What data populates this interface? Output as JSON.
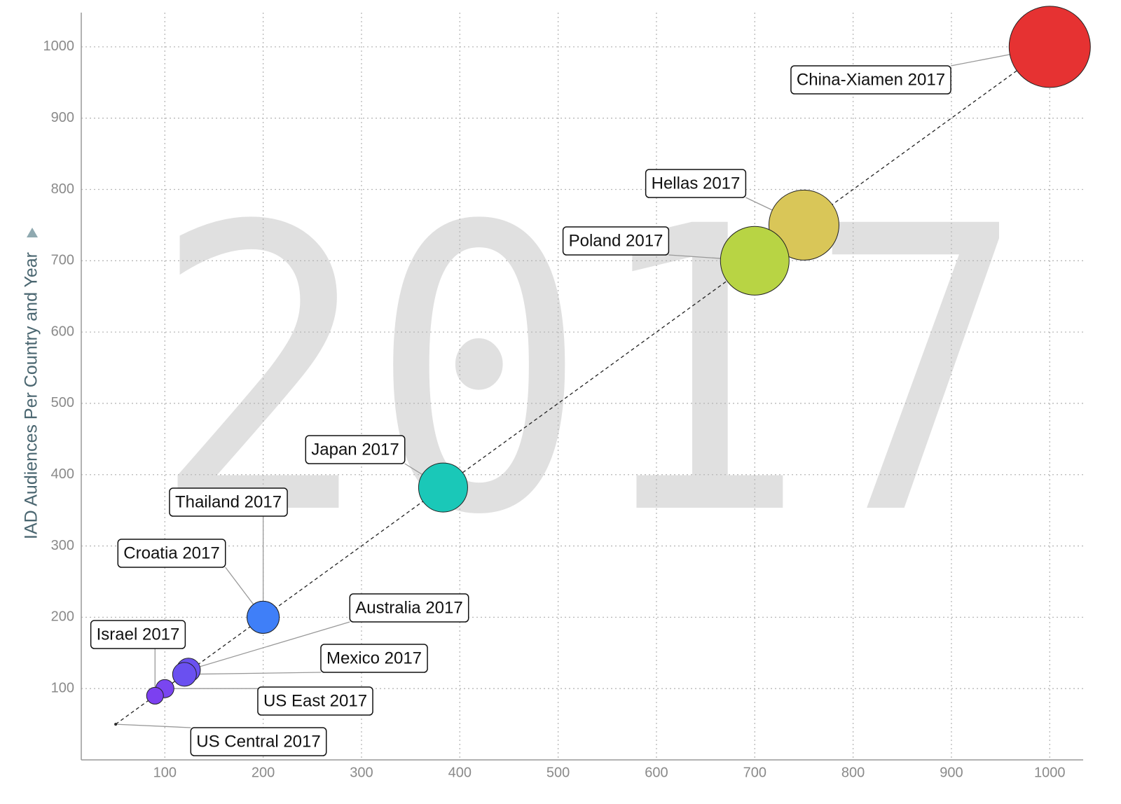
{
  "chart_data": {
    "type": "scatter",
    "watermark": "2017",
    "y_label": "IAD Audiences Per Country and Year",
    "xlim": [
      15,
      1034
    ],
    "ylim": [
      0,
      1048
    ],
    "xticks": [
      100,
      200,
      300,
      400,
      500,
      600,
      700,
      800,
      900,
      1000
    ],
    "yticks": [
      100,
      200,
      300,
      400,
      500,
      600,
      700,
      800,
      900,
      1000
    ],
    "grid": true,
    "trendline": {
      "x": [
        50,
        1000
      ],
      "y": [
        50,
        1000
      ]
    },
    "series": [
      {
        "name": "China-Xiamen 2017",
        "color": "#e63232",
        "x": [
          1000
        ],
        "values": [
          1000
        ],
        "sizes": [
          1000
        ]
      },
      {
        "name": "Hellas 2017",
        "color": "#d9c658",
        "x": [
          750
        ],
        "values": [
          750
        ],
        "sizes": [
          743
        ]
      },
      {
        "name": "Poland 2017",
        "color": "#b8d444",
        "x": [
          700
        ],
        "values": [
          700
        ],
        "sizes": [
          714
        ]
      },
      {
        "name": "Japan 2017",
        "color": "#1ac8b8",
        "x": [
          383
        ],
        "values": [
          382
        ],
        "sizes": [
          364
        ]
      },
      {
        "name": "Croatia 2017",
        "color": "#3f7ff8",
        "x": [
          200
        ],
        "values": [
          200
        ],
        "sizes": [
          157
        ]
      },
      {
        "name": "Thailand 2017",
        "color": "#3f7ff8",
        "x": [
          200
        ],
        "values": [
          200
        ],
        "sizes": [
          157
        ]
      },
      {
        "name": "Australia 2017",
        "color": "#6a50f0",
        "x": [
          124
        ],
        "values": [
          126
        ],
        "sizes": [
          86
        ]
      },
      {
        "name": "Mexico 2017",
        "color": "#6a50f0",
        "x": [
          120
        ],
        "values": [
          120
        ],
        "sizes": [
          86
        ]
      },
      {
        "name": "US East 2017",
        "color": "#7a46f0",
        "x": [
          100
        ],
        "values": [
          100
        ],
        "sizes": [
          50
        ]
      },
      {
        "name": "Israel 2017",
        "color": "#7c40f0",
        "x": [
          90
        ],
        "values": [
          90
        ],
        "sizes": [
          43
        ]
      },
      {
        "name": "US Central 2017",
        "color": "#333333",
        "x": [
          50
        ],
        "values": [
          50
        ],
        "sizes": [
          0.3
        ]
      }
    ]
  }
}
